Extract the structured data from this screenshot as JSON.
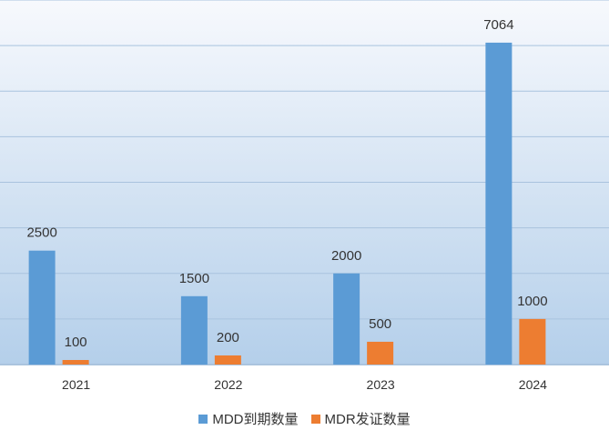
{
  "chart_data": {
    "type": "bar",
    "categories": [
      "2021",
      "2022",
      "2023",
      "2024"
    ],
    "series": [
      {
        "name": "MDD到期数量",
        "values": [
          2500,
          1500,
          2000,
          7064
        ],
        "color": "#5B9BD5"
      },
      {
        "name": "MDR发证数量",
        "values": [
          100,
          200,
          500,
          1000
        ],
        "color": "#ED7D31"
      }
    ],
    "ylim": [
      0,
      8000
    ],
    "grid": true,
    "legend_position": "bottom",
    "background_gradient": [
      "#f7f9fd",
      "#b4cfea"
    ],
    "gridline_color": "#a9c3de"
  }
}
